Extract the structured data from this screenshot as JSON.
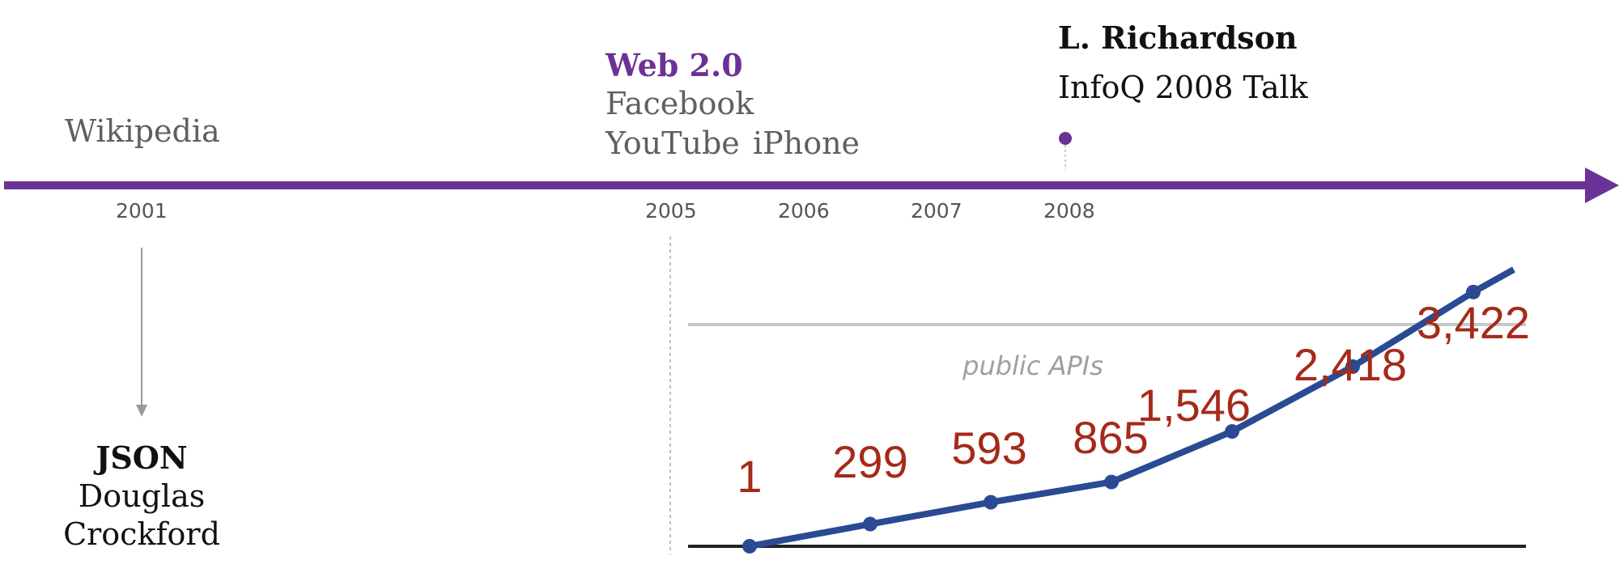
{
  "timeline": {
    "color": "#6b3296",
    "years": [
      "2001",
      "2005",
      "2006",
      "2007",
      "2008"
    ]
  },
  "events": {
    "wikipedia": "Wikipedia",
    "web20": "Web 2.0",
    "facebook": "Facebook",
    "youtube": "YouTube",
    "iphone": "iPhone",
    "richardson_name": "L. Richardson",
    "richardson_talk": "InfoQ 2008 Talk",
    "json_title": "JSON",
    "json_author_first": "Douglas",
    "json_author_last": "Crockford"
  },
  "chart_data": {
    "type": "line",
    "caption": "public APIs",
    "values": [
      1,
      299,
      593,
      865,
      1546,
      2418,
      3422
    ],
    "labels": [
      "1",
      "299",
      "593",
      "865",
      "1,546",
      "2,418",
      "3,422"
    ],
    "line_color": "#2a4a94",
    "label_color": "#a52a1a"
  }
}
